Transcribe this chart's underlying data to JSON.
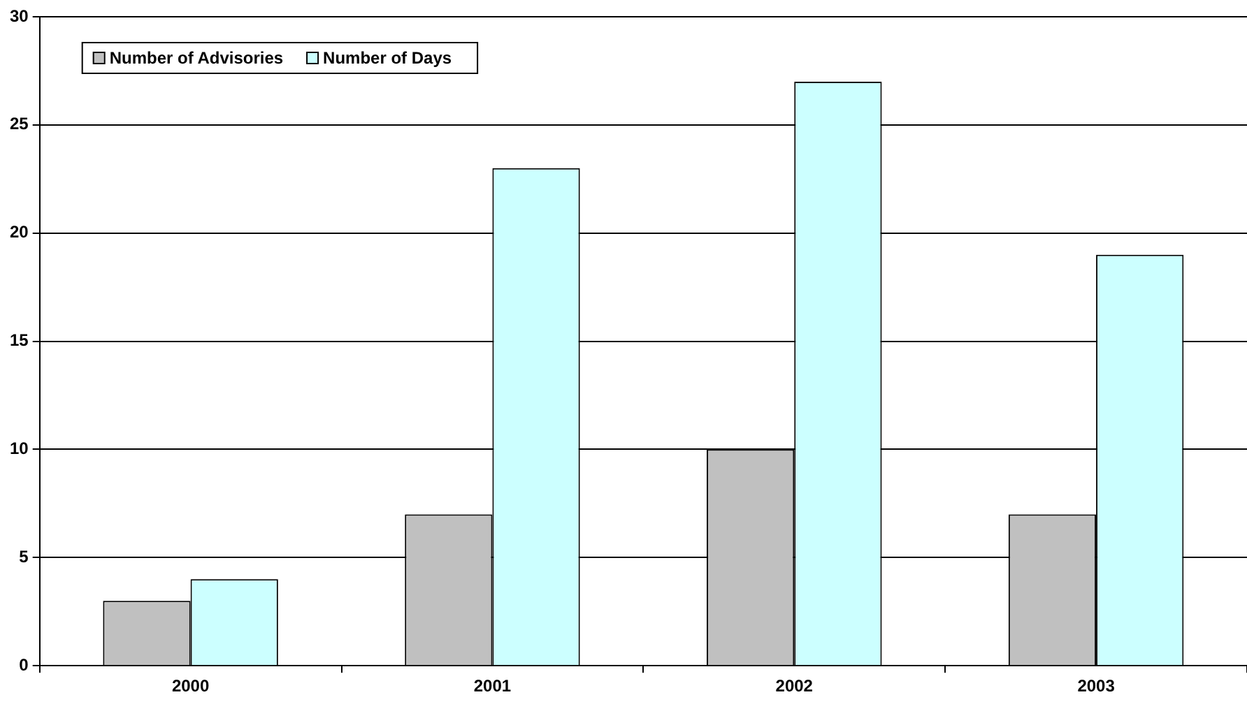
{
  "chart_data": {
    "type": "bar",
    "categories": [
      "2000",
      "2001",
      "2002",
      "2003"
    ],
    "series": [
      {
        "name": "Number of Advisories",
        "color": "#c0c0c0",
        "values": [
          3,
          7,
          10,
          7
        ]
      },
      {
        "name": "Number of Days",
        "color": "#ccffff",
        "values": [
          4,
          23,
          27,
          19
        ]
      }
    ],
    "ylim": [
      0,
      30
    ],
    "yticks": [
      0,
      5,
      10,
      15,
      20,
      25,
      30
    ],
    "grid": "y",
    "legend": "top left"
  }
}
